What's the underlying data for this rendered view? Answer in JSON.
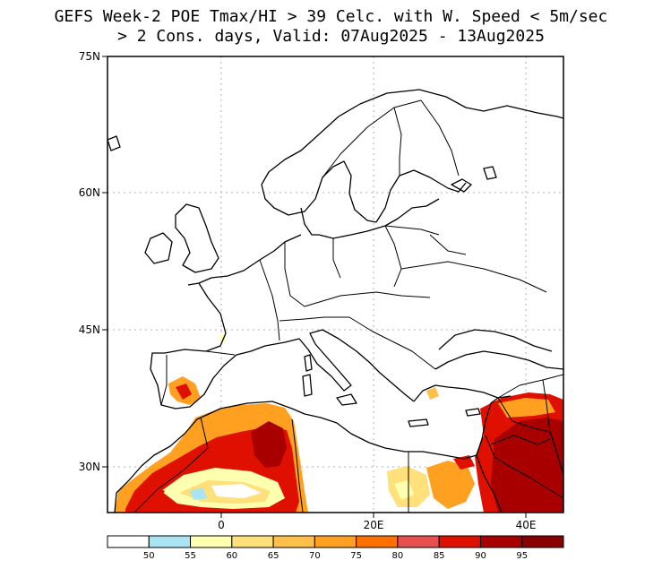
{
  "title": {
    "line1": "GEFS Week-2 POE Tmax/HI > 39 Celc. with W. Speed < 5m/sec",
    "line2": "> 2 Cons. days, Valid: 07Aug2025 - 13Aug2025"
  },
  "map": {
    "lat_labels": [
      "75N",
      "60N",
      "45N",
      "30N"
    ],
    "lon_labels": [
      "0",
      "20E",
      "40E"
    ],
    "border_color": "#000000",
    "grid_color": "#b0b0b0"
  },
  "colorbar": {
    "labels": [
      "50",
      "55",
      "60",
      "65",
      "70",
      "75",
      "80",
      "85",
      "90",
      "95"
    ],
    "colors": [
      "#ffffff",
      "#a8e4f2",
      "#ffffb0",
      "#ffe07a",
      "#ffc04a",
      "#ffa020",
      "#ff7000",
      "#e85050",
      "#e01000",
      "#a80000",
      "#880000"
    ]
  }
}
